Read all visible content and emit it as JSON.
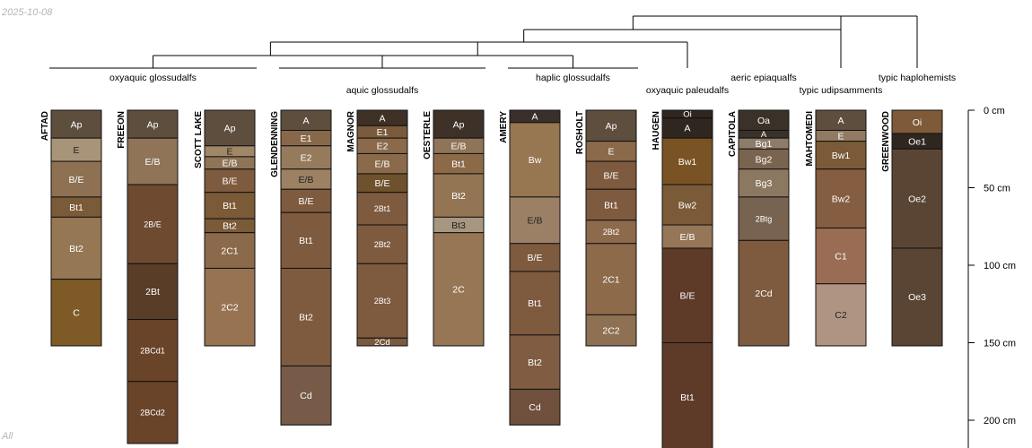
{
  "corner": {
    "date": "2025-10-08",
    "footer": "All"
  },
  "depth_axis": {
    "unit": "cm",
    "max_depth": 200,
    "ticks": [
      "0 cm",
      "50 cm",
      "100 cm",
      "150 cm",
      "200 cm"
    ]
  },
  "taxa": [
    {
      "label": "oxyaquic glossudalfs",
      "members": [
        "AFTAD",
        "FREEON",
        "SCOTT LAKE"
      ]
    },
    {
      "label": "aquic glossudalfs",
      "members": [
        "GLENDENNING",
        "MAGNOR",
        "OESTERLE"
      ]
    },
    {
      "label": "haplic glossudalfs",
      "members": [
        "AMERY",
        "ROSHOLT"
      ]
    },
    {
      "label": "oxyaquic paleudalfs",
      "members": [
        "HAUGEN"
      ]
    },
    {
      "label": "aeric epiaqualfs",
      "members": [
        "CAPITOLA"
      ]
    },
    {
      "label": "typic udipsamments",
      "members": [
        "MAHTOMEDI"
      ]
    },
    {
      "label": "typic haplohemists",
      "members": [
        "GREENWOOD"
      ]
    }
  ],
  "profiles": [
    {
      "name": "AFTAD",
      "horizons": [
        {
          "label": "Ap",
          "top": 0,
          "bottom": 18,
          "color": "#5e4e3e"
        },
        {
          "label": "E",
          "top": 18,
          "bottom": 33,
          "color": "#a89478"
        },
        {
          "label": "B/E",
          "top": 33,
          "bottom": 56,
          "color": "#8d7152"
        },
        {
          "label": "Bt1",
          "top": 56,
          "bottom": 69,
          "color": "#7a5a37"
        },
        {
          "label": "Bt2",
          "top": 69,
          "bottom": 109,
          "color": "#957754"
        },
        {
          "label": "C",
          "top": 109,
          "bottom": 152,
          "color": "#7d5a26"
        }
      ]
    },
    {
      "name": "FREEON",
      "horizons": [
        {
          "label": "Ap",
          "top": 0,
          "bottom": 18,
          "color": "#5e4e3e"
        },
        {
          "label": "E/B",
          "top": 18,
          "bottom": 48,
          "color": "#8f7458"
        },
        {
          "label": "2B/E",
          "top": 48,
          "bottom": 99,
          "color": "#6e4a30"
        },
        {
          "label": "2Bt",
          "top": 99,
          "bottom": 135,
          "color": "#5a3d27"
        },
        {
          "label": "2BCd1",
          "top": 135,
          "bottom": 175,
          "color": "#6a4429"
        },
        {
          "label": "2BCd2",
          "top": 175,
          "bottom": 215,
          "color": "#6a4429"
        }
      ]
    },
    {
      "name": "SCOTT LAKE",
      "horizons": [
        {
          "label": "Ap",
          "top": 0,
          "bottom": 23,
          "color": "#5e4e3e"
        },
        {
          "label": "E",
          "top": 23,
          "bottom": 30,
          "color": "#a08767"
        },
        {
          "label": "E/B",
          "top": 30,
          "bottom": 38,
          "color": "#8f7458"
        },
        {
          "label": "B/E",
          "top": 38,
          "bottom": 53,
          "color": "#7e5a3e"
        },
        {
          "label": "Bt1",
          "top": 53,
          "bottom": 70,
          "color": "#7a5a37"
        },
        {
          "label": "Bt2",
          "top": 70,
          "bottom": 79,
          "color": "#7a5a37"
        },
        {
          "label": "2C1",
          "top": 79,
          "bottom": 102,
          "color": "#8a6a4a"
        },
        {
          "label": "2C2",
          "top": 102,
          "bottom": 152,
          "color": "#977352"
        }
      ]
    },
    {
      "name": "GLENDENNING",
      "horizons": [
        {
          "label": "A",
          "top": 0,
          "bottom": 13,
          "color": "#5e4e3e"
        },
        {
          "label": "E1",
          "top": 13,
          "bottom": 23,
          "color": "#88684a"
        },
        {
          "label": "E2",
          "top": 23,
          "bottom": 38,
          "color": "#957a5c"
        },
        {
          "label": "E/B",
          "top": 38,
          "bottom": 51,
          "color": "#9c8262"
        },
        {
          "label": "B/E",
          "top": 51,
          "bottom": 66,
          "color": "#7e5a3e"
        },
        {
          "label": "Bt1",
          "top": 66,
          "bottom": 102,
          "color": "#7e5a3e"
        },
        {
          "label": "Bt2",
          "top": 102,
          "bottom": 165,
          "color": "#7e5a3e"
        },
        {
          "label": "Cd",
          "top": 165,
          "bottom": 203,
          "color": "#775a48"
        }
      ]
    },
    {
      "name": "MAGNOR",
      "horizons": [
        {
          "label": "A",
          "top": 0,
          "bottom": 10,
          "color": "#3f3126"
        },
        {
          "label": "E1",
          "top": 10,
          "bottom": 18,
          "color": "#7a5a3a"
        },
        {
          "label": "E2",
          "top": 18,
          "bottom": 28,
          "color": "#8a6a4a"
        },
        {
          "label": "E/B",
          "top": 28,
          "bottom": 41,
          "color": "#8a6a4a"
        },
        {
          "label": "B/E",
          "top": 41,
          "bottom": 53,
          "color": "#6e512d"
        },
        {
          "label": "2Bt1",
          "top": 53,
          "bottom": 74,
          "color": "#7e5a3e"
        },
        {
          "label": "2Bt2",
          "top": 74,
          "bottom": 99,
          "color": "#7e5a3e"
        },
        {
          "label": "2Bt3",
          "top": 99,
          "bottom": 147,
          "color": "#7e5a3e"
        },
        {
          "label": "2Cd",
          "top": 147,
          "bottom": 152,
          "color": "#7a5a3f"
        }
      ]
    },
    {
      "name": "OESTERLE",
      "horizons": [
        {
          "label": "Ap",
          "top": 0,
          "bottom": 18,
          "color": "#3e3127"
        },
        {
          "label": "E/B",
          "top": 18,
          "bottom": 28,
          "color": "#8f7458"
        },
        {
          "label": "Bt1",
          "top": 28,
          "bottom": 41,
          "color": "#8c6a48"
        },
        {
          "label": "Bt2",
          "top": 41,
          "bottom": 69,
          "color": "#937554"
        },
        {
          "label": "Bt3",
          "top": 69,
          "bottom": 79,
          "color": "#a79680"
        },
        {
          "label": "2C",
          "top": 79,
          "bottom": 152,
          "color": "#967654"
        }
      ]
    },
    {
      "name": "AMERY",
      "horizons": [
        {
          "label": "A",
          "top": 0,
          "bottom": 8,
          "color": "#3a2f2a"
        },
        {
          "label": "Bw",
          "top": 8,
          "bottom": 56,
          "color": "#977652"
        },
        {
          "label": "E/B",
          "top": 56,
          "bottom": 86,
          "color": "#9c8066"
        },
        {
          "label": "B/E",
          "top": 86,
          "bottom": 104,
          "color": "#7e5a3e"
        },
        {
          "label": "Bt1",
          "top": 104,
          "bottom": 145,
          "color": "#7e5a3e"
        },
        {
          "label": "Bt2",
          "top": 145,
          "bottom": 180,
          "color": "#805c43"
        },
        {
          "label": "Cd",
          "top": 180,
          "bottom": 203,
          "color": "#6e503c"
        }
      ]
    },
    {
      "name": "ROSHOLT",
      "horizons": [
        {
          "label": "Ap",
          "top": 0,
          "bottom": 20,
          "color": "#5e4e3e"
        },
        {
          "label": "E",
          "top": 20,
          "bottom": 33,
          "color": "#8a6a4a"
        },
        {
          "label": "B/E",
          "top": 33,
          "bottom": 51,
          "color": "#7e5a3e"
        },
        {
          "label": "Bt1",
          "top": 51,
          "bottom": 71,
          "color": "#7e5a3e"
        },
        {
          "label": "2Bt2",
          "top": 71,
          "bottom": 86,
          "color": "#8e6a4d"
        },
        {
          "label": "2C1",
          "top": 86,
          "bottom": 132,
          "color": "#8c6a4a"
        },
        {
          "label": "2C2",
          "top": 132,
          "bottom": 152,
          "color": "#8e7052"
        }
      ]
    },
    {
      "name": "HAUGEN",
      "horizons": [
        {
          "label": "Oi",
          "top": 0,
          "bottom": 5,
          "color": "#2f2620"
        },
        {
          "label": "A",
          "top": 5,
          "bottom": 18,
          "color": "#2f2620"
        },
        {
          "label": "Bw1",
          "top": 18,
          "bottom": 48,
          "color": "#7a5324"
        },
        {
          "label": "Bw2",
          "top": 48,
          "bottom": 74,
          "color": "#7a5a37"
        },
        {
          "label": "E/B",
          "top": 74,
          "bottom": 89,
          "color": "#957658"
        },
        {
          "label": "B/E",
          "top": 89,
          "bottom": 150,
          "color": "#5e3a28"
        },
        {
          "label": "Bt1",
          "top": 150,
          "bottom": 220,
          "color": "#5e3a28"
        }
      ]
    },
    {
      "name": "CAPITOLA",
      "horizons": [
        {
          "label": "Oa",
          "top": 0,
          "bottom": 13,
          "color": "#3a3128"
        },
        {
          "label": "A",
          "top": 13,
          "bottom": 18,
          "color": "#3a3128"
        },
        {
          "label": "Bg1",
          "top": 18,
          "bottom": 25,
          "color": "#8e7c6a"
        },
        {
          "label": "Bg2",
          "top": 25,
          "bottom": 38,
          "color": "#7a6450"
        },
        {
          "label": "Bg3",
          "top": 38,
          "bottom": 56,
          "color": "#8c7861"
        },
        {
          "label": "2Btg",
          "top": 56,
          "bottom": 84,
          "color": "#776350"
        },
        {
          "label": "2Cd",
          "top": 84,
          "bottom": 152,
          "color": "#7e5a3e"
        }
      ]
    },
    {
      "name": "MAHTOMEDI",
      "horizons": [
        {
          "label": "A",
          "top": 0,
          "bottom": 13,
          "color": "#5e4e3e"
        },
        {
          "label": "E",
          "top": 13,
          "bottom": 20,
          "color": "#917a61"
        },
        {
          "label": "Bw1",
          "top": 20,
          "bottom": 38,
          "color": "#7a5a37"
        },
        {
          "label": "Bw2",
          "top": 38,
          "bottom": 76,
          "color": "#855d40"
        },
        {
          "label": "C1",
          "top": 76,
          "bottom": 112,
          "color": "#9a6c54"
        },
        {
          "label": "C2",
          "top": 112,
          "bottom": 152,
          "color": "#b09482"
        }
      ]
    },
    {
      "name": "GREENWOOD",
      "horizons": [
        {
          "label": "Oi",
          "top": 0,
          "bottom": 15,
          "color": "#7e5a38"
        },
        {
          "label": "Oe1",
          "top": 15,
          "bottom": 25,
          "color": "#2f2620"
        },
        {
          "label": "Oe2",
          "top": 25,
          "bottom": 89,
          "color": "#5a4534"
        },
        {
          "label": "Oe3",
          "top": 89,
          "bottom": 152,
          "color": "#5a4534"
        }
      ]
    }
  ]
}
